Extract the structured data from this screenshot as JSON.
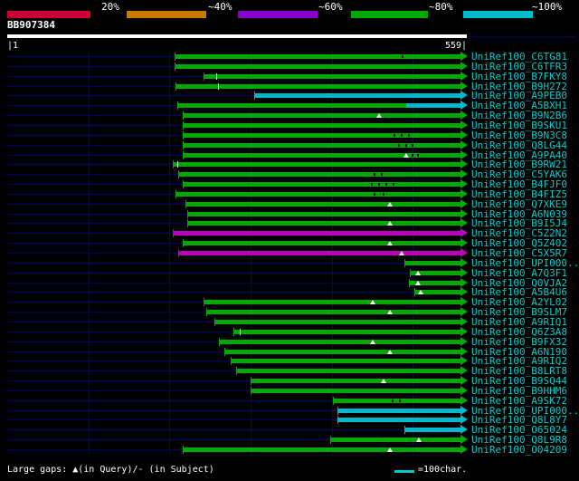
{
  "header": {
    "accession": "BB907384"
  },
  "scale": {
    "start_label": "|1",
    "end_label": "559|"
  },
  "identity_key": [
    {
      "label": "20%",
      "color": "#cc0033"
    },
    {
      "label": "~40%",
      "color": "#cc7700"
    },
    {
      "label": "~60%",
      "color": "#8800cc"
    },
    {
      "label": "~80%",
      "color": "#00a800"
    },
    {
      "label": "~100%",
      "color": "#00bbcc"
    }
  ],
  "footer": {
    "gaps_legend": "Large gaps: ▲(in Query)/- (in Subject)",
    "scale_line_label": "=100char."
  },
  "colors": {
    "green": "#00a800",
    "cyan": "#00b8cc",
    "magenta": "#bb00bb",
    "baseline": "#000066",
    "label_text": "#00cccc",
    "background": "#000000"
  },
  "chart_data": {
    "type": "alignment-overview",
    "title": "BLAST graphical overview of hits against query BB907384",
    "query": {
      "name": "BB907384",
      "length": 559,
      "range": [
        1,
        559
      ]
    },
    "legend_position": "top",
    "hits": [
      {
        "label": "UniRef100_C6TG81",
        "segments": [
          {
            "start": 206,
            "end": 559,
            "color": "green"
          }
        ],
        "markers": [
          {
            "pos": 488,
            "type": "dash"
          }
        ]
      },
      {
        "label": "UniRef100_C6TFR3",
        "segments": [
          {
            "start": 206,
            "end": 559,
            "color": "green"
          }
        ],
        "markers": []
      },
      {
        "label": "UniRef100_B7FKY8",
        "segments": [
          {
            "start": 242,
            "end": 559,
            "color": "green"
          }
        ],
        "markers": [
          {
            "pos": 259,
            "type": "tick"
          }
        ]
      },
      {
        "label": "UniRef100_B9H272",
        "segments": [
          {
            "start": 208,
            "end": 559,
            "color": "green"
          }
        ],
        "markers": [
          {
            "pos": 261,
            "type": "tick"
          }
        ]
      },
      {
        "label": "UniRef100_A9PEB0",
        "segments": [
          {
            "start": 305,
            "end": 559,
            "color": "cyan"
          }
        ],
        "markers": []
      },
      {
        "label": "UniRef100_A5BXH1",
        "segments": [
          {
            "start": 210,
            "end": 492,
            "color": "green"
          },
          {
            "start": 492,
            "end": 559,
            "color": "cyan"
          }
        ],
        "markers": []
      },
      {
        "label": "UniRef100_B9N2B6",
        "segments": [
          {
            "start": 216,
            "end": 559,
            "color": "green"
          }
        ],
        "markers": [
          {
            "pos": 459,
            "type": "tri"
          }
        ]
      },
      {
        "label": "UniRef100_B9SKU1",
        "segments": [
          {
            "start": 216,
            "end": 559,
            "color": "green"
          }
        ],
        "markers": []
      },
      {
        "label": "UniRef100_B9N3C8",
        "segments": [
          {
            "start": 216,
            "end": 559,
            "color": "green"
          }
        ],
        "markers": [
          {
            "pos": 478,
            "type": "dash"
          },
          {
            "pos": 486,
            "type": "dash"
          },
          {
            "pos": 495,
            "type": "dash"
          }
        ]
      },
      {
        "label": "UniRef100_Q8LG44",
        "segments": [
          {
            "start": 216,
            "end": 559,
            "color": "green"
          }
        ],
        "markers": [
          {
            "pos": 483,
            "type": "dash"
          },
          {
            "pos": 492,
            "type": "dash"
          },
          {
            "pos": 500,
            "type": "dash"
          }
        ]
      },
      {
        "label": "UniRef100_A9PA40",
        "segments": [
          {
            "start": 216,
            "end": 559,
            "color": "green"
          }
        ],
        "markers": [
          {
            "pos": 492,
            "type": "tri"
          },
          {
            "pos": 500,
            "type": "dash"
          },
          {
            "pos": 507,
            "type": "dash"
          }
        ]
      },
      {
        "label": "UniRef100_B9RW21",
        "segments": [
          {
            "start": 204,
            "end": 559,
            "color": "green"
          }
        ],
        "markers": [
          {
            "pos": 211,
            "type": "tick"
          }
        ]
      },
      {
        "label": "UniRef100_C5YAK6",
        "segments": [
          {
            "start": 211,
            "end": 559,
            "color": "green"
          }
        ],
        "markers": [
          {
            "pos": 453,
            "type": "dash"
          },
          {
            "pos": 462,
            "type": "dash"
          }
        ]
      },
      {
        "label": "UniRef100_B4FJF0",
        "segments": [
          {
            "start": 216,
            "end": 559,
            "color": "green"
          }
        ],
        "markers": [
          {
            "pos": 450,
            "type": "dash"
          },
          {
            "pos": 459,
            "type": "dash"
          },
          {
            "pos": 468,
            "type": "dash"
          },
          {
            "pos": 476,
            "type": "dash"
          }
        ]
      },
      {
        "label": "UniRef100_B4FIZ5",
        "segments": [
          {
            "start": 208,
            "end": 559,
            "color": "green"
          }
        ],
        "markers": [
          {
            "pos": 453,
            "type": "dash"
          },
          {
            "pos": 464,
            "type": "dash"
          }
        ]
      },
      {
        "label": "UniRef100_Q7XKE9",
        "segments": [
          {
            "start": 220,
            "end": 559,
            "color": "green"
          }
        ],
        "markers": [
          {
            "pos": 472,
            "type": "tri"
          }
        ]
      },
      {
        "label": "UniRef100_A6N039",
        "segments": [
          {
            "start": 222,
            "end": 559,
            "color": "green"
          }
        ],
        "markers": []
      },
      {
        "label": "UniRef100_B9I5J4",
        "segments": [
          {
            "start": 222,
            "end": 559,
            "color": "green"
          }
        ],
        "markers": [
          {
            "pos": 472,
            "type": "tri"
          }
        ]
      },
      {
        "label": "UniRef100_C5Z2N2",
        "segments": [
          {
            "start": 204,
            "end": 559,
            "color": "magenta"
          }
        ],
        "markers": []
      },
      {
        "label": "UniRef100_Q5Z402",
        "segments": [
          {
            "start": 216,
            "end": 559,
            "color": "green"
          }
        ],
        "markers": [
          {
            "pos": 472,
            "type": "tri"
          }
        ]
      },
      {
        "label": "UniRef100_C5X5R7",
        "segments": [
          {
            "start": 211,
            "end": 559,
            "color": "magenta"
          }
        ],
        "markers": [
          {
            "pos": 486,
            "type": "tri"
          }
        ]
      },
      {
        "label": "UniRef100_UPI000...",
        "segments": [
          {
            "start": 490,
            "end": 559,
            "color": "green"
          }
        ],
        "markers": []
      },
      {
        "label": "UniRef100_A7Q3F1",
        "segments": [
          {
            "start": 497,
            "end": 559,
            "color": "green"
          }
        ],
        "markers": [
          {
            "pos": 506,
            "type": "tri"
          }
        ]
      },
      {
        "label": "UniRef100_Q0VJA2",
        "segments": [
          {
            "start": 495,
            "end": 559,
            "color": "green"
          }
        ],
        "markers": [
          {
            "pos": 506,
            "type": "tri"
          }
        ]
      },
      {
        "label": "UniRef100_A5B4U6",
        "segments": [
          {
            "start": 502,
            "end": 559,
            "color": "green"
          }
        ],
        "markers": [
          {
            "pos": 510,
            "type": "tri"
          }
        ]
      },
      {
        "label": "UniRef100_A2YL02",
        "segments": [
          {
            "start": 242,
            "end": 559,
            "color": "green"
          }
        ],
        "markers": [
          {
            "pos": 451,
            "type": "tri"
          }
        ]
      },
      {
        "label": "UniRef100_B9SLM7",
        "segments": [
          {
            "start": 245,
            "end": 559,
            "color": "green"
          }
        ],
        "markers": [
          {
            "pos": 472,
            "type": "tri"
          }
        ]
      },
      {
        "label": "UniRef100_A9RIQ1",
        "segments": [
          {
            "start": 255,
            "end": 559,
            "color": "green"
          }
        ],
        "markers": []
      },
      {
        "label": "UniRef100_Q6Z3A8",
        "segments": [
          {
            "start": 279,
            "end": 559,
            "color": "green"
          }
        ],
        "markers": [
          {
            "pos": 288,
            "type": "tick"
          }
        ]
      },
      {
        "label": "UniRef100_B9FX32",
        "segments": [
          {
            "start": 261,
            "end": 559,
            "color": "green"
          }
        ],
        "markers": [
          {
            "pos": 451,
            "type": "tri"
          }
        ]
      },
      {
        "label": "UniRef100_A6N190",
        "segments": [
          {
            "start": 268,
            "end": 559,
            "color": "green"
          }
        ],
        "markers": [
          {
            "pos": 472,
            "type": "tri"
          }
        ]
      },
      {
        "label": "UniRef100_A9RIQ2",
        "segments": [
          {
            "start": 275,
            "end": 559,
            "color": "green"
          }
        ],
        "markers": []
      },
      {
        "label": "UniRef100_B8LRT8",
        "segments": [
          {
            "start": 282,
            "end": 559,
            "color": "green"
          }
        ],
        "markers": []
      },
      {
        "label": "UniRef100_B9SQ44",
        "segments": [
          {
            "start": 300,
            "end": 559,
            "color": "green"
          }
        ],
        "markers": [
          {
            "pos": 464,
            "type": "tri"
          }
        ]
      },
      {
        "label": "UniRef100_B9HHM6",
        "segments": [
          {
            "start": 300,
            "end": 559,
            "color": "green"
          }
        ],
        "markers": []
      },
      {
        "label": "UniRef100_A9SK72",
        "segments": [
          {
            "start": 402,
            "end": 559,
            "color": "green"
          }
        ],
        "markers": [
          {
            "pos": 475,
            "type": "dash"
          },
          {
            "pos": 484,
            "type": "dash"
          }
        ]
      },
      {
        "label": "UniRef100_UPI000...",
        "segments": [
          {
            "start": 407,
            "end": 559,
            "color": "cyan"
          }
        ],
        "markers": []
      },
      {
        "label": "UniRef100_Q8L8Y7",
        "segments": [
          {
            "start": 407,
            "end": 559,
            "color": "cyan"
          }
        ],
        "markers": []
      },
      {
        "label": "UniRef100_O65024",
        "segments": [
          {
            "start": 490,
            "end": 559,
            "color": "cyan"
          }
        ],
        "markers": []
      },
      {
        "label": "UniRef100_Q8L9R8",
        "segments": [
          {
            "start": 398,
            "end": 559,
            "color": "green"
          }
        ],
        "markers": [
          {
            "pos": 508,
            "type": "tri"
          }
        ]
      },
      {
        "label": "UniRef100_O04209",
        "segments": [
          {
            "start": 216,
            "end": 559,
            "color": "green"
          }
        ],
        "markers": [
          {
            "pos": 472,
            "type": "tri"
          }
        ]
      }
    ]
  }
}
